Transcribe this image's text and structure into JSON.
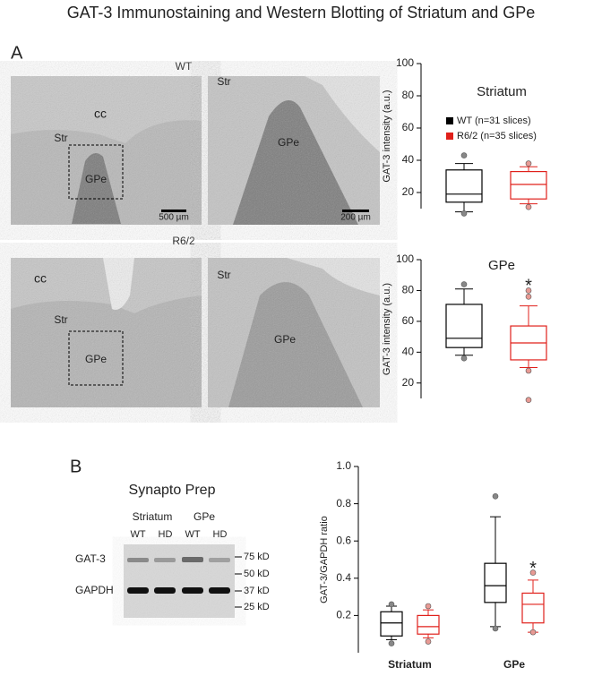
{
  "title": "GAT-3 Immunostaining and Western Blotting of Striatum and GPe",
  "panel_a": {
    "letter": "A",
    "rows": [
      {
        "genotype": "WT",
        "labels": [
          "cc",
          "Str",
          "GPe"
        ],
        "scale_bar": "500 µm",
        "zoom_labels": [
          "Str",
          "GPe"
        ],
        "zoom_scale_bar": "200 µm"
      },
      {
        "genotype": "R6/2",
        "labels": [
          "cc",
          "Str",
          "GPe"
        ],
        "zoom_labels": [
          "Str",
          "GPe"
        ]
      }
    ]
  },
  "panel_b": {
    "letter": "B",
    "blot_title": "Synapto Prep",
    "regions": [
      "Striatum",
      "GPe"
    ],
    "lanes": [
      "WT",
      "HD",
      "WT",
      "HD"
    ],
    "bands": [
      "GAT-3",
      "GAPDH"
    ],
    "markers": [
      "75 kD",
      "50 kD",
      "37 kD",
      "25 kD"
    ]
  },
  "chart_data": [
    {
      "type": "box",
      "title": "Striatum",
      "ylabel": "GAT-3 intensity (a.u.)",
      "ylim": [
        10,
        100
      ],
      "yticks": [
        20,
        40,
        60,
        80,
        100
      ],
      "series": [
        {
          "name": "WT (n=31 slices)",
          "color": "#000000",
          "outlier_color": "#888888",
          "boxes": [
            {
              "whisker_low": 8,
              "q1": 14,
              "median": 19,
              "q3": 34,
              "whisker_high": 38,
              "outliers": [
                43,
                7
              ]
            }
          ]
        },
        {
          "name": "R6/2 (n=35 slices)",
          "color": "#e0201b",
          "outlier_color": "#e89a94",
          "boxes": [
            {
              "whisker_low": 13,
              "q1": 16,
              "median": 25,
              "q3": 33,
              "whisker_high": 36,
              "outliers": [
                38,
                11
              ]
            }
          ]
        }
      ]
    },
    {
      "type": "box",
      "title": "GPe",
      "ylabel": "GAT-3 intensity (a.u.)",
      "ylim": [
        10,
        100
      ],
      "yticks": [
        20,
        40,
        60,
        80,
        100
      ],
      "annotation": "*",
      "series": [
        {
          "color": "#000000",
          "outlier_color": "#888888",
          "boxes": [
            {
              "whisker_low": 38,
              "q1": 43,
              "median": 49,
              "q3": 71,
              "whisker_high": 81,
              "outliers": [
                84,
                36
              ]
            }
          ]
        },
        {
          "color": "#e0201b",
          "outlier_color": "#e89a94",
          "boxes": [
            {
              "whisker_low": 30,
              "q1": 35,
              "median": 46,
              "q3": 57,
              "whisker_high": 70,
              "outliers": [
                80,
                76,
                28,
                9
              ]
            }
          ]
        }
      ]
    },
    {
      "type": "box",
      "ylabel": "GAT-3/GAPDH ratio",
      "ylim": [
        0,
        1
      ],
      "yticks": [
        0.2,
        0.4,
        0.6,
        0.8,
        {
          "value": 1,
          "label": "1.0"
        }
      ],
      "categories": [
        "Striatum",
        "GPe"
      ],
      "annotation": "*",
      "series": [
        {
          "color": "#000000",
          "outlier_color": "#888888",
          "boxes": [
            {
              "whisker_low": 0.07,
              "q1": 0.09,
              "median": 0.16,
              "q3": 0.22,
              "whisker_high": 0.25,
              "outliers": [
                0.26,
                0.05
              ]
            },
            {
              "whisker_low": 0.14,
              "q1": 0.27,
              "median": 0.36,
              "q3": 0.48,
              "whisker_high": 0.73,
              "outliers": [
                0.84,
                0.13
              ]
            }
          ]
        },
        {
          "color": "#e0201b",
          "outlier_color": "#e89a94",
          "boxes": [
            {
              "whisker_low": 0.08,
              "q1": 0.1,
              "median": 0.14,
              "q3": 0.2,
              "whisker_high": 0.23,
              "outliers": [
                0.25,
                0.06
              ]
            },
            {
              "whisker_low": 0.11,
              "q1": 0.16,
              "median": 0.26,
              "q3": 0.32,
              "whisker_high": 0.39,
              "outliers": [
                0.43,
                0.11
              ]
            }
          ]
        }
      ]
    }
  ]
}
